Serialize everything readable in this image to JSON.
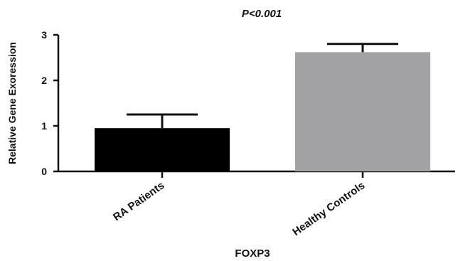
{
  "chart_data": {
    "type": "bar",
    "title": "P<0.001",
    "xlabel": "FOXP3",
    "ylabel": "Relative Gene Exoression",
    "categories": [
      "RA Patients",
      "Healthy Controls"
    ],
    "values": [
      0.95,
      2.62
    ],
    "errors": [
      0.3,
      0.18
    ],
    "colors": [
      "#000000",
      "#a3a3a6"
    ],
    "ylim": [
      0,
      3
    ],
    "yticks": [
      "0",
      "1",
      "2",
      "3"
    ],
    "grid": false
  }
}
